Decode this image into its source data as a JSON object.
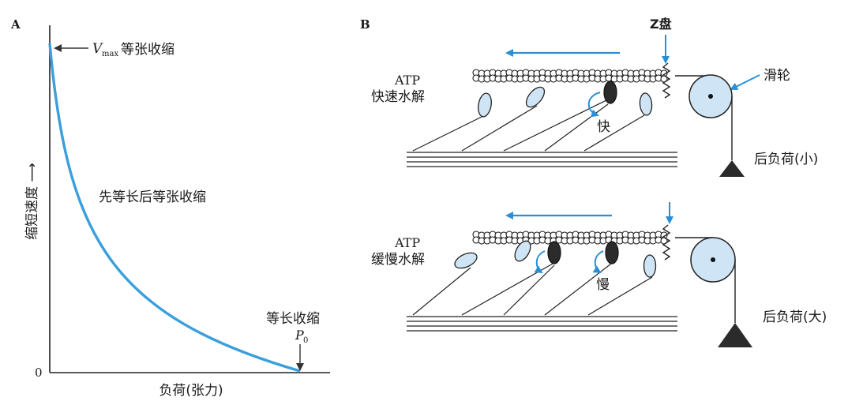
{
  "panel_a": {
    "label": "A",
    "y_axis_label": "缩短速度 ⟶",
    "x_axis_label": "负荷(张力)",
    "origin_label": "0",
    "vmax_V": "V",
    "vmax_sub": "max",
    "vmax_desc": "等张收缩",
    "curve_label": "先等长后等张收缩",
    "isometric_label": "等长收缩",
    "p0_P": "P",
    "p0_sub": "0",
    "curve_color": "#3a9fdc"
  },
  "panel_b": {
    "label": "B",
    "z_disc_label": "Z盘",
    "pulley_label": "滑轮",
    "top": {
      "atp_label": "ATP",
      "hydrolysis_label": "快速水解",
      "speed_label": "快",
      "load_label": "后负荷(小)"
    },
    "bottom": {
      "atp_label": "ATP",
      "hydrolysis_label": "缓慢水解",
      "speed_label": "慢",
      "load_label": "后负荷(大)"
    },
    "arrow_color": "#2a8fd6",
    "pulley_color": "#cfe5f5"
  }
}
